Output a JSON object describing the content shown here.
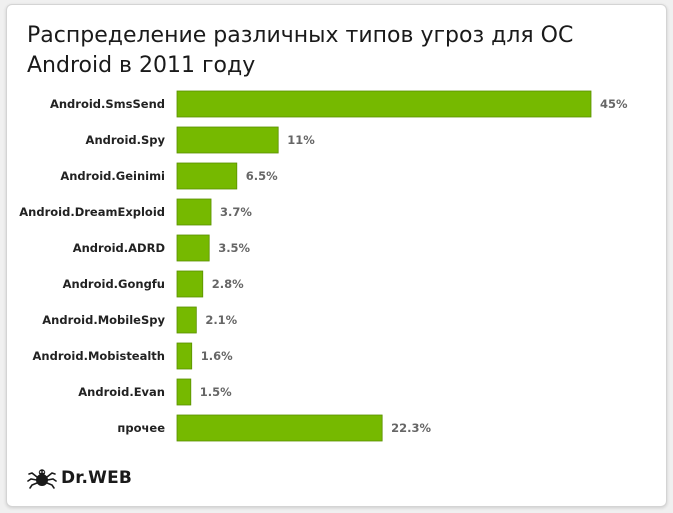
{
  "title": "Распределение различных типов угроз для ОС Android в 2011 году",
  "logo_text": "Dr.WEB",
  "colors": {
    "bar": "#76b900",
    "bar_border": "#5a8f00",
    "label": "#222222",
    "value": "#666666"
  },
  "chart_data": {
    "type": "bar",
    "orientation": "horizontal",
    "title": "Распределение различных типов угроз для ОС Android в 2011 году",
    "xlabel": "",
    "ylabel": "",
    "grid": false,
    "categories": [
      "Android.SmsSend",
      "Android.Spy",
      "Android.Geinimi",
      "Android.DreamExploid",
      "Android.ADRD",
      "Android.Gongfu",
      "Android.MobileSpy",
      "Android.Mobistealth",
      "Android.Evan",
      "прочее"
    ],
    "values": [
      45,
      11,
      6.5,
      3.7,
      3.5,
      2.8,
      2.1,
      1.6,
      1.5,
      22.3
    ],
    "value_labels": [
      "45%",
      "11%",
      "6.5%",
      "3.7%",
      "3.5%",
      "2.8%",
      "2.1%",
      "1.6%",
      "1.5%",
      "22.3%"
    ],
    "xlim": [
      0,
      45
    ]
  }
}
